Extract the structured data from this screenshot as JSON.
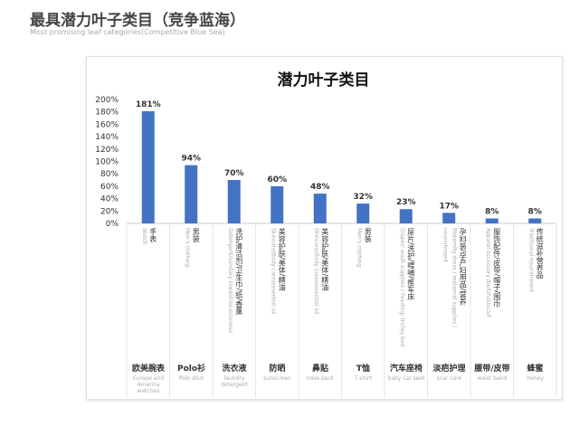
{
  "heading": {
    "title": "最具潜力叶子类目（竞争蓝海）",
    "subtitle": "Most promising leaf categories(Competitive Blue Sea)"
  },
  "chart_data": {
    "type": "bar",
    "title": "潜力叶子类目",
    "ylim": [
      0,
      200
    ],
    "yticks": [
      "0%",
      "20%",
      "40%",
      "60%",
      "80%",
      "100%",
      "120%",
      "140%",
      "160%",
      "180%",
      "200%"
    ],
    "bar_color": "#4472c4",
    "values": [
      181,
      94,
      70,
      60,
      48,
      32,
      23,
      17,
      8,
      8
    ],
    "data_labels": [
      "181%",
      "94%",
      "70%",
      "60%",
      "48%",
      "32%",
      "23%",
      "17%",
      "8%",
      "8%"
    ],
    "categories": [
      {
        "cat_zh": "手表",
        "cat_en": "Watch",
        "leaf_zh": "欧美腕表",
        "leaf_en": "Europe and America watches"
      },
      {
        "cat_zh": "男装",
        "cat_en": "Men's clothing",
        "leaf_zh": "Polo衫",
        "leaf_en": "Polo shirt"
      },
      {
        "cat_zh": "洗护清洁剂/卫生巾/纸/香薰",
        "cat_en": "Detergent/sanitary towel/tissue/aroma",
        "leaf_zh": "洗衣液",
        "leaf_en": "laundry detergent"
      },
      {
        "cat_zh": "美容护肤/美体/精油",
        "cat_en": "Skincare/Body care/essential oil",
        "leaf_zh": "防晒",
        "leaf_en": "sunscreen"
      },
      {
        "cat_zh": "美容护肤/美体/精油",
        "cat_en": "Skincare/Body care/essential oil",
        "leaf_zh": "鼻贴",
        "leaf_en": "nose pack"
      },
      {
        "cat_zh": "男装",
        "cat_en": "Men's clothing",
        "leaf_zh": "T恤",
        "leaf_en": "T-shirt"
      },
      {
        "cat_zh": "尿片/洗护/喂哺/推车床",
        "cat_en": "Diaper/ wash supplies / Feeding/ trolley bed",
        "leaf_zh": "汽车座椅",
        "leaf_en": "baby car seat"
      },
      {
        "cat_zh": "孕妇装/孕产妇用品/营养",
        "cat_en": "Maternity dress / maternal supplies / nourishment",
        "leaf_zh": "淡疤护理",
        "leaf_en": "scar care"
      },
      {
        "cat_zh": "服饰配件/皮带/帽子/围巾",
        "cat_en": "Apparel accessory /belt/hat/scarf",
        "leaf_zh": "腰带/皮带",
        "leaf_en": "waist band"
      },
      {
        "cat_zh": "传统滋补营养品",
        "cat_en": "Traditional nourishment",
        "leaf_zh": "蜂蜜",
        "leaf_en": "honey"
      }
    ]
  }
}
